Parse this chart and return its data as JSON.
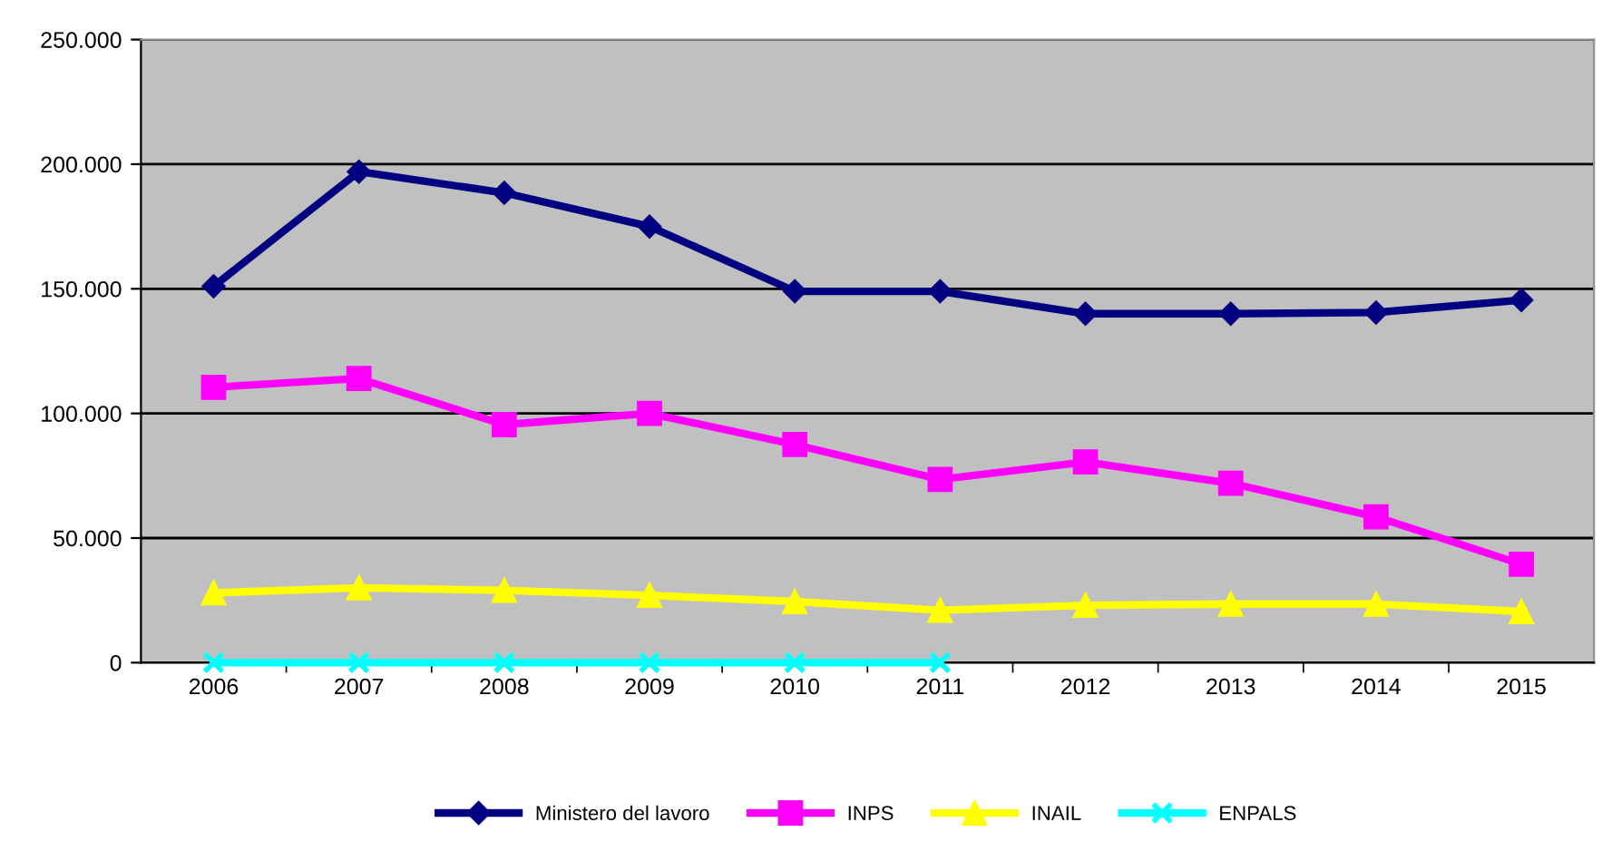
{
  "chart_data": {
    "type": "line",
    "categories": [
      "2006",
      "2007",
      "2008",
      "2009",
      "2010",
      "2011",
      "2012",
      "2013",
      "2014",
      "2015"
    ],
    "series": [
      {
        "name": "Ministero del lavoro",
        "color": "#000080",
        "marker": "diamond",
        "values": [
          151000,
          197000,
          188500,
          175000,
          149000,
          149000,
          140000,
          140000,
          140500,
          145500
        ]
      },
      {
        "name": "INPS",
        "color": "#ff00ff",
        "marker": "square",
        "values": [
          110500,
          114000,
          95500,
          100000,
          87500,
          73500,
          80500,
          72000,
          58500,
          39500
        ]
      },
      {
        "name": "INAIL",
        "color": "#ffff00",
        "marker": "triangle",
        "values": [
          28000,
          30000,
          29000,
          27000,
          24500,
          21000,
          23000,
          23500,
          23500,
          20500
        ]
      },
      {
        "name": "ENPALS",
        "color": "#00ffff",
        "marker": "cross",
        "values": [
          0,
          0,
          0,
          0,
          0,
          0,
          null,
          null,
          null,
          null
        ]
      }
    ],
    "ylim": [
      0,
      250000
    ],
    "yticks": [
      {
        "value": 0,
        "label": "0"
      },
      {
        "value": 50000,
        "label": "50.000"
      },
      {
        "value": 100000,
        "label": "100.000"
      },
      {
        "value": 150000,
        "label": "150.000"
      },
      {
        "value": 200000,
        "label": "200.000"
      },
      {
        "value": 250000,
        "label": "250.000"
      }
    ],
    "grid": "y",
    "legend": "bottom"
  }
}
